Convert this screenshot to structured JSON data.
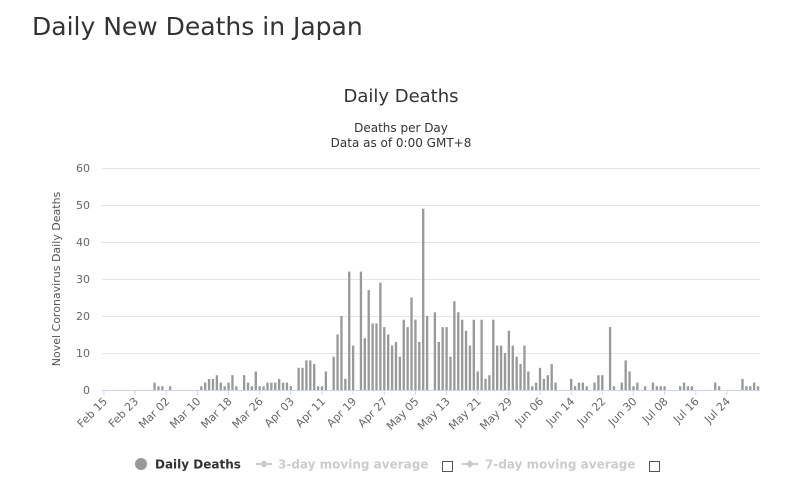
{
  "page": {
    "title": "Daily New Deaths in Japan"
  },
  "chart_data": {
    "type": "bar",
    "title": "Daily Deaths",
    "subtitle_lines": [
      "Deaths per Day",
      "Data as of 0:00 GMT+8"
    ],
    "xlabel": "",
    "ylabel": "Novel Coronavirus Daily Deaths",
    "ylim": [
      0,
      60
    ],
    "yticks": [
      0,
      10,
      20,
      30,
      40,
      50,
      60
    ],
    "grid": true,
    "legend_position": "bottom",
    "bar_color": "#999999",
    "x_start": "2020-02-15",
    "x_end": "2020-07-26",
    "xtick_labels": [
      "Feb 15",
      "Feb 23",
      "Mar 02",
      "Mar 10",
      "Mar 18",
      "Mar 26",
      "Apr 03",
      "Apr 11",
      "Apr 19",
      "Apr 27",
      "May 05",
      "May 13",
      "May 21",
      "May 29",
      "Jun 06",
      "Jun 14",
      "Jun 22",
      "Jun 30",
      "Jul 08",
      "Jul 16",
      "Jul 24"
    ],
    "values": [
      0,
      0,
      0,
      0,
      0,
      0,
      0,
      0,
      0,
      0,
      0,
      0,
      0,
      2,
      1,
      1,
      0,
      1,
      0,
      0,
      0,
      0,
      0,
      0,
      0,
      1,
      2,
      3,
      3,
      4,
      2,
      1,
      2,
      4,
      1,
      0,
      4,
      2,
      1,
      5,
      1,
      1,
      2,
      2,
      2,
      3,
      2,
      2,
      1,
      0,
      6,
      6,
      8,
      8,
      7,
      1,
      1,
      5,
      0,
      9,
      15,
      20,
      3,
      32,
      12,
      0,
      32,
      14,
      27,
      18,
      18,
      29,
      17,
      15,
      12,
      13,
      9,
      19,
      17,
      25,
      19,
      13,
      49,
      20,
      0,
      21,
      13,
      17,
      17,
      9,
      24,
      21,
      19,
      16,
      12,
      19,
      5,
      19,
      3,
      4,
      19,
      12,
      12,
      10,
      16,
      12,
      9,
      7,
      12,
      5,
      1,
      2,
      6,
      3,
      4,
      7,
      2,
      0,
      0,
      0,
      3,
      1,
      2,
      2,
      1,
      0,
      2,
      4,
      4,
      0,
      17,
      1,
      0,
      2,
      8,
      5,
      1,
      2,
      0,
      1,
      0,
      2,
      1,
      1,
      1,
      0,
      0,
      0,
      1,
      2,
      1,
      1,
      0,
      0,
      0,
      0,
      0,
      2,
      1,
      0,
      0,
      0,
      0,
      0,
      3,
      1,
      1,
      2,
      1
    ],
    "series": [
      {
        "name": "Daily Deaths",
        "enabled": true,
        "color": "#999999"
      },
      {
        "name": "3-day moving average",
        "enabled": false,
        "color": "#cccccc"
      },
      {
        "name": "7-day moving average",
        "enabled": false,
        "color": "#cccccc"
      }
    ]
  }
}
